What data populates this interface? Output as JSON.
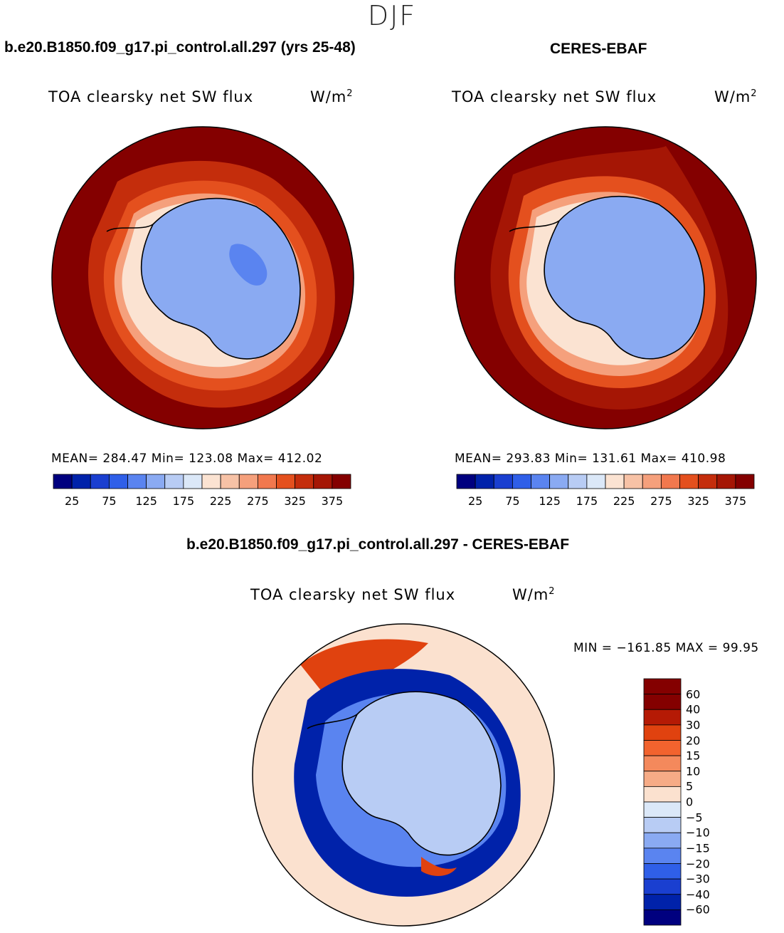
{
  "title": "DJF",
  "panels": [
    {
      "case_title": "b.e20.B1850.f09_g17.pi_control.all.297 (yrs 25-48)",
      "variable": "TOA clearsky net SW flux",
      "units": "W/m",
      "units_exp": "2",
      "stats": "MEAN= 284.47   Min= 123.08   Max= 412.02",
      "colorbar_ticks": [
        "25",
        "75",
        "125",
        "175",
        "225",
        "275",
        "325",
        "375"
      ]
    },
    {
      "case_title": "CERES-EBAF",
      "variable": "TOA clearsky net SW flux",
      "units": "W/m",
      "units_exp": "2",
      "stats": "MEAN= 293.83   Min= 131.61   Max= 410.98",
      "colorbar_ticks": [
        "25",
        "75",
        "125",
        "175",
        "225",
        "275",
        "325",
        "375"
      ]
    }
  ],
  "diff": {
    "case_title": "b.e20.B1850.f09_g17.pi_control.all.297 - CERES-EBAF",
    "variable": "TOA clearsky net SW flux",
    "units": "W/m",
    "units_exp": "2",
    "stats": "MIN = −161.85 MAX =   99.95",
    "colorbar_ticks": [
      "60",
      "40",
      "30",
      "20",
      "15",
      "10",
      "5",
      "0",
      "−5",
      "−10",
      "−15",
      "−20",
      "−30",
      "−40",
      "−60"
    ]
  },
  "colors": {
    "abs_scale": [
      "#00007f",
      "#0022aa",
      "#1a3fd0",
      "#2f5fe8",
      "#5a84f0",
      "#8aaaf2",
      "#b8ccf4",
      "#dbe8f8",
      "#fbe3d2",
      "#f7c2a6",
      "#f5a07c",
      "#f1784e",
      "#e4501e",
      "#c42d0c",
      "#a51605",
      "#840000"
    ],
    "diff_scale": [
      "#840000",
      "#b51a05",
      "#e0420f",
      "#f2632e",
      "#f4895c",
      "#f6ab86",
      "#fbe1cf",
      "#dbe8f8",
      "#b8ccf4",
      "#8aaaf2",
      "#5a84f0",
      "#2f5fe8",
      "#1a3fd0",
      "#0022aa",
      "#00007f"
    ]
  }
}
